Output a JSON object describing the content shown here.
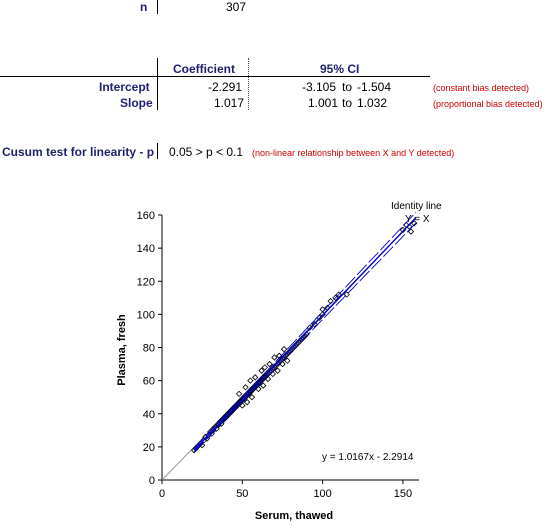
{
  "stats": {
    "n_label": "n",
    "n_value": "307",
    "headers": {
      "coefficient": "Coefficient",
      "ci": "95% CI"
    },
    "rows": [
      {
        "label": "Intercept",
        "coef": "-2.291",
        "ci_low": "-3.105",
        "ci_sep": "to",
        "ci_high": "-1.504",
        "note": "(constant bias detected)"
      },
      {
        "label": "Slope",
        "coef": "1.017",
        "ci_low": "1.001",
        "ci_sep": "to",
        "ci_high": "1.032",
        "note": "(proportional bias detected)"
      }
    ],
    "cusum_label": "Cusum test for linearity - p",
    "cusum_value": "0.05 > p < 0.1",
    "cusum_note": "(non-linear relationship between X and Y detected)"
  },
  "colors": {
    "header_text": "#1f1f6e",
    "note_red": "#cc0000",
    "fit_line": "#0000cc",
    "identity_line": "#999999"
  },
  "chart_data": {
    "type": "scatter",
    "xlabel": "Serum, thawed",
    "ylabel": "Plasma, fresh",
    "xlim": [
      0,
      160
    ],
    "ylim": [
      0,
      160
    ],
    "x_ticks": [
      0,
      50,
      100,
      150
    ],
    "y_ticks": [
      0,
      20,
      40,
      60,
      80,
      100,
      120,
      140,
      160
    ],
    "identity_label": "Identity line",
    "identity_eq": "Y = X",
    "regression_label": "y = 1.0167x - 2.2914",
    "regression": {
      "slope": 1.0167,
      "intercept": -2.2914
    },
    "ci_band": {
      "slope_low": 1.001,
      "intercept_low": -3.105,
      "slope_high": 1.032,
      "intercept_high": -1.504
    },
    "fit_x_range": [
      20,
      158
    ],
    "grid": false,
    "points": [
      [
        20,
        18
      ],
      [
        21,
        19
      ],
      [
        22,
        20
      ],
      [
        24,
        22
      ],
      [
        25,
        21
      ],
      [
        26,
        24
      ],
      [
        27,
        26
      ],
      [
        28,
        25
      ],
      [
        29,
        27
      ],
      [
        30,
        29
      ],
      [
        31,
        28
      ],
      [
        32,
        30
      ],
      [
        32,
        31
      ],
      [
        33,
        32
      ],
      [
        34,
        31
      ],
      [
        35,
        33
      ],
      [
        35,
        34
      ],
      [
        36,
        35
      ],
      [
        37,
        34
      ],
      [
        37,
        36
      ],
      [
        38,
        36
      ],
      [
        38,
        37
      ],
      [
        39,
        37
      ],
      [
        39,
        38
      ],
      [
        40,
        38
      ],
      [
        40,
        39
      ],
      [
        41,
        39
      ],
      [
        41,
        40
      ],
      [
        42,
        40
      ],
      [
        42,
        41
      ],
      [
        43,
        41
      ],
      [
        43,
        42
      ],
      [
        44,
        42
      ],
      [
        44,
        43
      ],
      [
        45,
        43
      ],
      [
        45,
        44
      ],
      [
        46,
        44
      ],
      [
        46,
        45
      ],
      [
        47,
        45
      ],
      [
        47,
        46
      ],
      [
        48,
        46
      ],
      [
        48,
        47
      ],
      [
        49,
        47
      ],
      [
        49,
        48
      ],
      [
        50,
        48
      ],
      [
        50,
        49
      ],
      [
        51,
        49
      ],
      [
        51,
        50
      ],
      [
        52,
        50
      ],
      [
        52,
        51
      ],
      [
        53,
        51
      ],
      [
        53,
        52
      ],
      [
        54,
        52
      ],
      [
        54,
        53
      ],
      [
        55,
        53
      ],
      [
        55,
        54
      ],
      [
        56,
        54
      ],
      [
        56,
        55
      ],
      [
        57,
        55
      ],
      [
        57,
        56
      ],
      [
        58,
        56
      ],
      [
        58,
        57
      ],
      [
        59,
        57
      ],
      [
        59,
        58
      ],
      [
        60,
        58
      ],
      [
        60,
        59
      ],
      [
        61,
        59
      ],
      [
        61,
        60
      ],
      [
        62,
        60
      ],
      [
        62,
        61
      ],
      [
        63,
        61
      ],
      [
        63,
        62
      ],
      [
        64,
        62
      ],
      [
        64,
        63
      ],
      [
        65,
        63
      ],
      [
        66,
        64
      ],
      [
        67,
        65
      ],
      [
        68,
        66
      ],
      [
        69,
        67
      ],
      [
        70,
        68
      ],
      [
        71,
        69
      ],
      [
        72,
        70
      ],
      [
        73,
        71
      ],
      [
        74,
        72
      ],
      [
        75,
        73
      ],
      [
        76,
        74
      ],
      [
        77,
        75
      ],
      [
        78,
        76
      ],
      [
        79,
        77
      ],
      [
        80,
        78
      ],
      [
        81,
        79
      ],
      [
        82,
        80
      ],
      [
        83,
        81
      ],
      [
        84,
        82
      ],
      [
        85,
        83
      ],
      [
        86,
        84
      ],
      [
        87,
        85
      ],
      [
        88,
        86
      ],
      [
        89,
        87
      ],
      [
        90,
        88
      ],
      [
        48,
        52
      ],
      [
        52,
        56
      ],
      [
        55,
        60
      ],
      [
        58,
        62
      ],
      [
        62,
        66
      ],
      [
        64,
        68
      ],
      [
        67,
        70
      ],
      [
        70,
        74
      ],
      [
        73,
        75
      ],
      [
        76,
        79
      ],
      [
        50,
        45
      ],
      [
        53,
        47
      ],
      [
        56,
        50
      ],
      [
        60,
        55
      ],
      [
        63,
        57
      ],
      [
        66,
        61
      ],
      [
        69,
        64
      ],
      [
        72,
        66
      ],
      [
        75,
        70
      ],
      [
        78,
        72
      ],
      [
        92,
        92
      ],
      [
        95,
        94
      ],
      [
        98,
        98
      ],
      [
        100,
        100
      ],
      [
        103,
        104
      ],
      [
        105,
        108
      ],
      [
        108,
        110
      ],
      [
        110,
        112
      ],
      [
        115,
        112
      ],
      [
        100,
        103
      ],
      [
        155,
        150
      ],
      [
        154,
        153
      ],
      [
        157,
        155
      ],
      [
        150,
        151
      ],
      [
        152,
        154
      ]
    ]
  }
}
